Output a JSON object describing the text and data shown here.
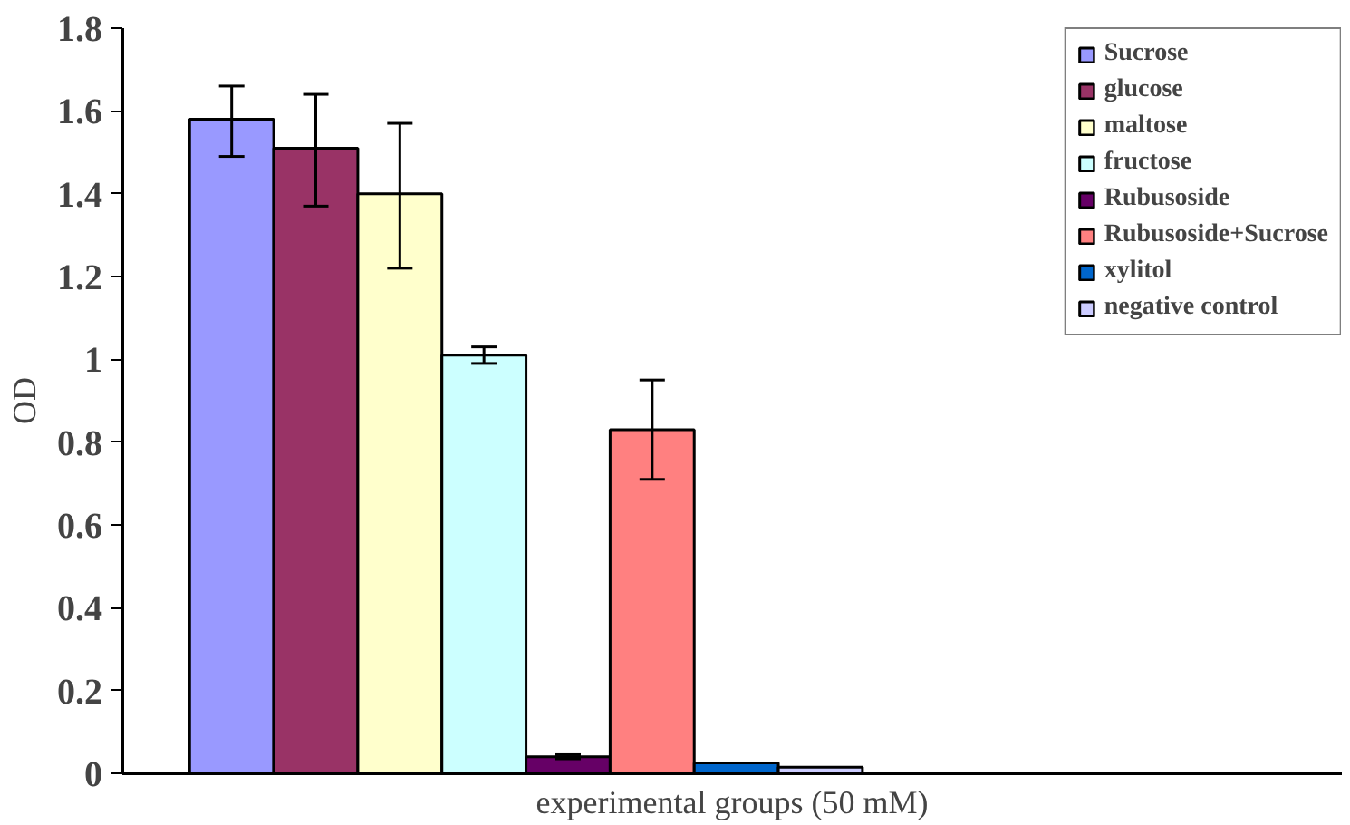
{
  "chart_data": {
    "type": "bar",
    "xlabel": "experimental groups (50 mM)",
    "ylabel": "OD",
    "categories": [
      null
    ],
    "ylim": [
      0,
      1.8
    ],
    "yticks": [
      0,
      0.2,
      0.4,
      0.6,
      0.8,
      1,
      1.2,
      1.4,
      1.6,
      1.8
    ],
    "grid": false,
    "legend": "right",
    "series": [
      {
        "name": "Sucrose",
        "color": "#9999ff",
        "values": [
          1.58
        ],
        "errors": [
          [
            1.49,
            1.66
          ]
        ]
      },
      {
        "name": "glucose",
        "color": "#993366",
        "values": [
          1.51
        ],
        "errors": [
          [
            1.37,
            1.64
          ]
        ]
      },
      {
        "name": "maltose",
        "color": "#ffffcc",
        "values": [
          1.4
        ],
        "errors": [
          [
            1.22,
            1.57
          ]
        ]
      },
      {
        "name": "fructose",
        "color": "#ccffff",
        "values": [
          1.01
        ],
        "errors": [
          [
            0.99,
            1.03
          ]
        ]
      },
      {
        "name": "Rubusoside",
        "color": "#660066",
        "values": [
          0.04
        ],
        "errors": [
          [
            0.035,
            0.045
          ]
        ]
      },
      {
        "name": "Rubusoside+Sucrose",
        "color": "#ff8080",
        "values": [
          0.83
        ],
        "errors": [
          [
            0.71,
            0.95
          ]
        ]
      },
      {
        "name": "xylitol",
        "color": "#0066cc",
        "values": [
          0.025
        ]
      },
      {
        "name": "negative control",
        "color": "#ccccff",
        "values": [
          0.015
        ]
      }
    ]
  }
}
